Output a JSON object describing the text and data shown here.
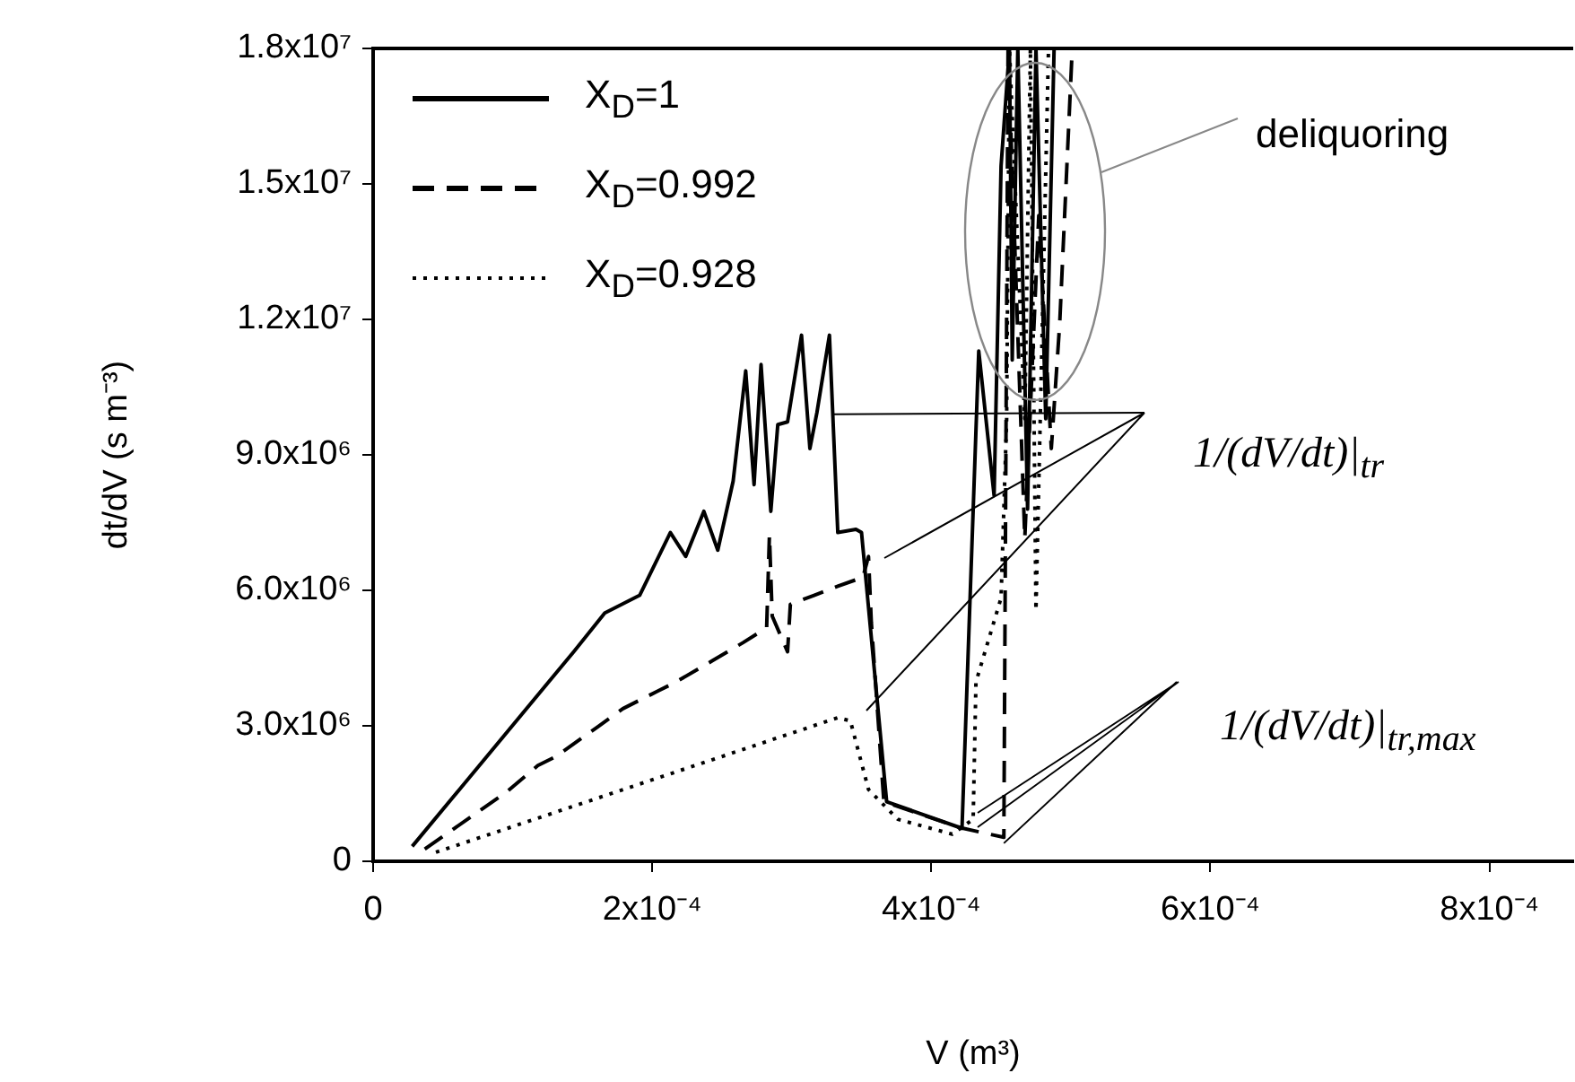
{
  "chart_data": {
    "type": "line",
    "xlabel": "V (m³)",
    "ylabel": "dt/dV (s m⁻³)",
    "xlim": [
      0,
      0.00086
    ],
    "ylim": [
      0,
      18000000
    ],
    "xticks": [
      0,
      {
        "value": 0.0002,
        "label": "2x10⁻⁴"
      },
      {
        "value": 0.0004,
        "label": "4x10⁻⁴"
      },
      {
        "value": 0.0006,
        "label": "6x10⁻⁴"
      },
      {
        "value": 0.0008,
        "label": "8x10⁻⁴"
      }
    ],
    "yticks": [
      0,
      {
        "value": 3000000,
        "label": "3.0x10⁶"
      },
      {
        "value": 6000000,
        "label": "6.0x10⁶"
      },
      {
        "value": 9000000,
        "label": "9.0x10⁶"
      },
      {
        "value": 12000000,
        "label": "1.2x10⁷"
      },
      {
        "value": 15000000,
        "label": "1.5x10⁷"
      },
      {
        "value": 18000000,
        "label": "1.8x10⁷"
      }
    ],
    "grid": false,
    "legend": "top left",
    "marker": "none",
    "annotations": [
      "deliquoring",
      {
        "text": "1/(dV/dt)|$_{tr}$",
        "x": 0.000329,
        "y": 9900000
      },
      {
        "text": "1/(dV/dt)|$_{tr,max}$",
        "x": 0.000452,
        "y": 400000
      }
    ],
    "series": [
      {
        "name": "X$_{D}$=1",
        "color": "#000000",
        "line_style": "solid",
        "x": [
          2.8e-05,
          0.000144,
          0.000166,
          0.000191,
          0.000213,
          0.000224,
          0.000237,
          0.000247,
          0.000258,
          0.000267,
          0.000273,
          0.000278,
          0.000285,
          0.00029,
          0.000297,
          0.000307,
          0.000313,
          0.000318,
          0.000327,
          0.000333,
          0.000346,
          0.00035,
          0.000368,
          0.000422,
          0.000434,
          0.000445,
          0.00045,
          0.000456,
          0.000458,
          0.000462,
          0.000469,
          0.000475,
          0.000482,
          0.000488
        ],
        "values": [
          330000,
          4650000,
          5500000,
          5890000,
          7280000,
          6750000,
          7750000,
          6890000,
          8420000,
          10860000,
          8340000,
          11000000,
          7750000,
          9670000,
          9730000,
          11650000,
          9140000,
          9930000,
          11650000,
          7280000,
          7350000,
          7280000,
          1320000,
          730000,
          11300000,
          8100000,
          15400000,
          18000000,
          11100000,
          18000000,
          7800000,
          18000000,
          9800000,
          18000000
        ]
      },
      {
        "name": "X$_{D}$=0.992",
        "color": "#000000",
        "line_style": "dashed",
        "x": [
          3.7e-05,
          9.5e-05,
          0.000118,
          0.000131,
          0.000161,
          0.000179,
          0.000204,
          0.000217,
          0.000243,
          0.000265,
          0.000282,
          0.000284,
          0.000286,
          0.000297,
          0.000299,
          0.000316,
          0.000333,
          0.000351,
          0.000355,
          0.000357,
          0.000366,
          0.00042,
          0.000452,
          0.000455,
          0.000467,
          0.000477,
          0.000486,
          0.000492,
          0.000501
        ],
        "values": [
          270000,
          1520000,
          2120000,
          2320000,
          2980000,
          3380000,
          3770000,
          3970000,
          4440000,
          4840000,
          5170000,
          7220000,
          5430000,
          4640000,
          5690000,
          5890000,
          6090000,
          6290000,
          6750000,
          5300000,
          1320000,
          750000,
          530000,
          18000000,
          7150000,
          14300000,
          9140000,
          11900000,
          18000000
        ]
      },
      {
        "name": "X$_{D}$=0.928",
        "color": "#000000",
        "line_style": "dotted",
        "x": [
          4.5e-05,
          0.000333,
          0.000342,
          0.000355,
          0.000376,
          0.000415,
          0.00043,
          0.000432,
          0.00045,
          0.000454,
          0.000456,
          0.000467,
          0.000471,
          0.000475,
          0.000484
        ],
        "values": [
          200000,
          3180000,
          3110000,
          1590000,
          930000,
          600000,
          930000,
          3970000,
          5830000,
          9800000,
          18000000,
          9800000,
          18000000,
          5560000,
          18000000
        ]
      }
    ]
  }
}
